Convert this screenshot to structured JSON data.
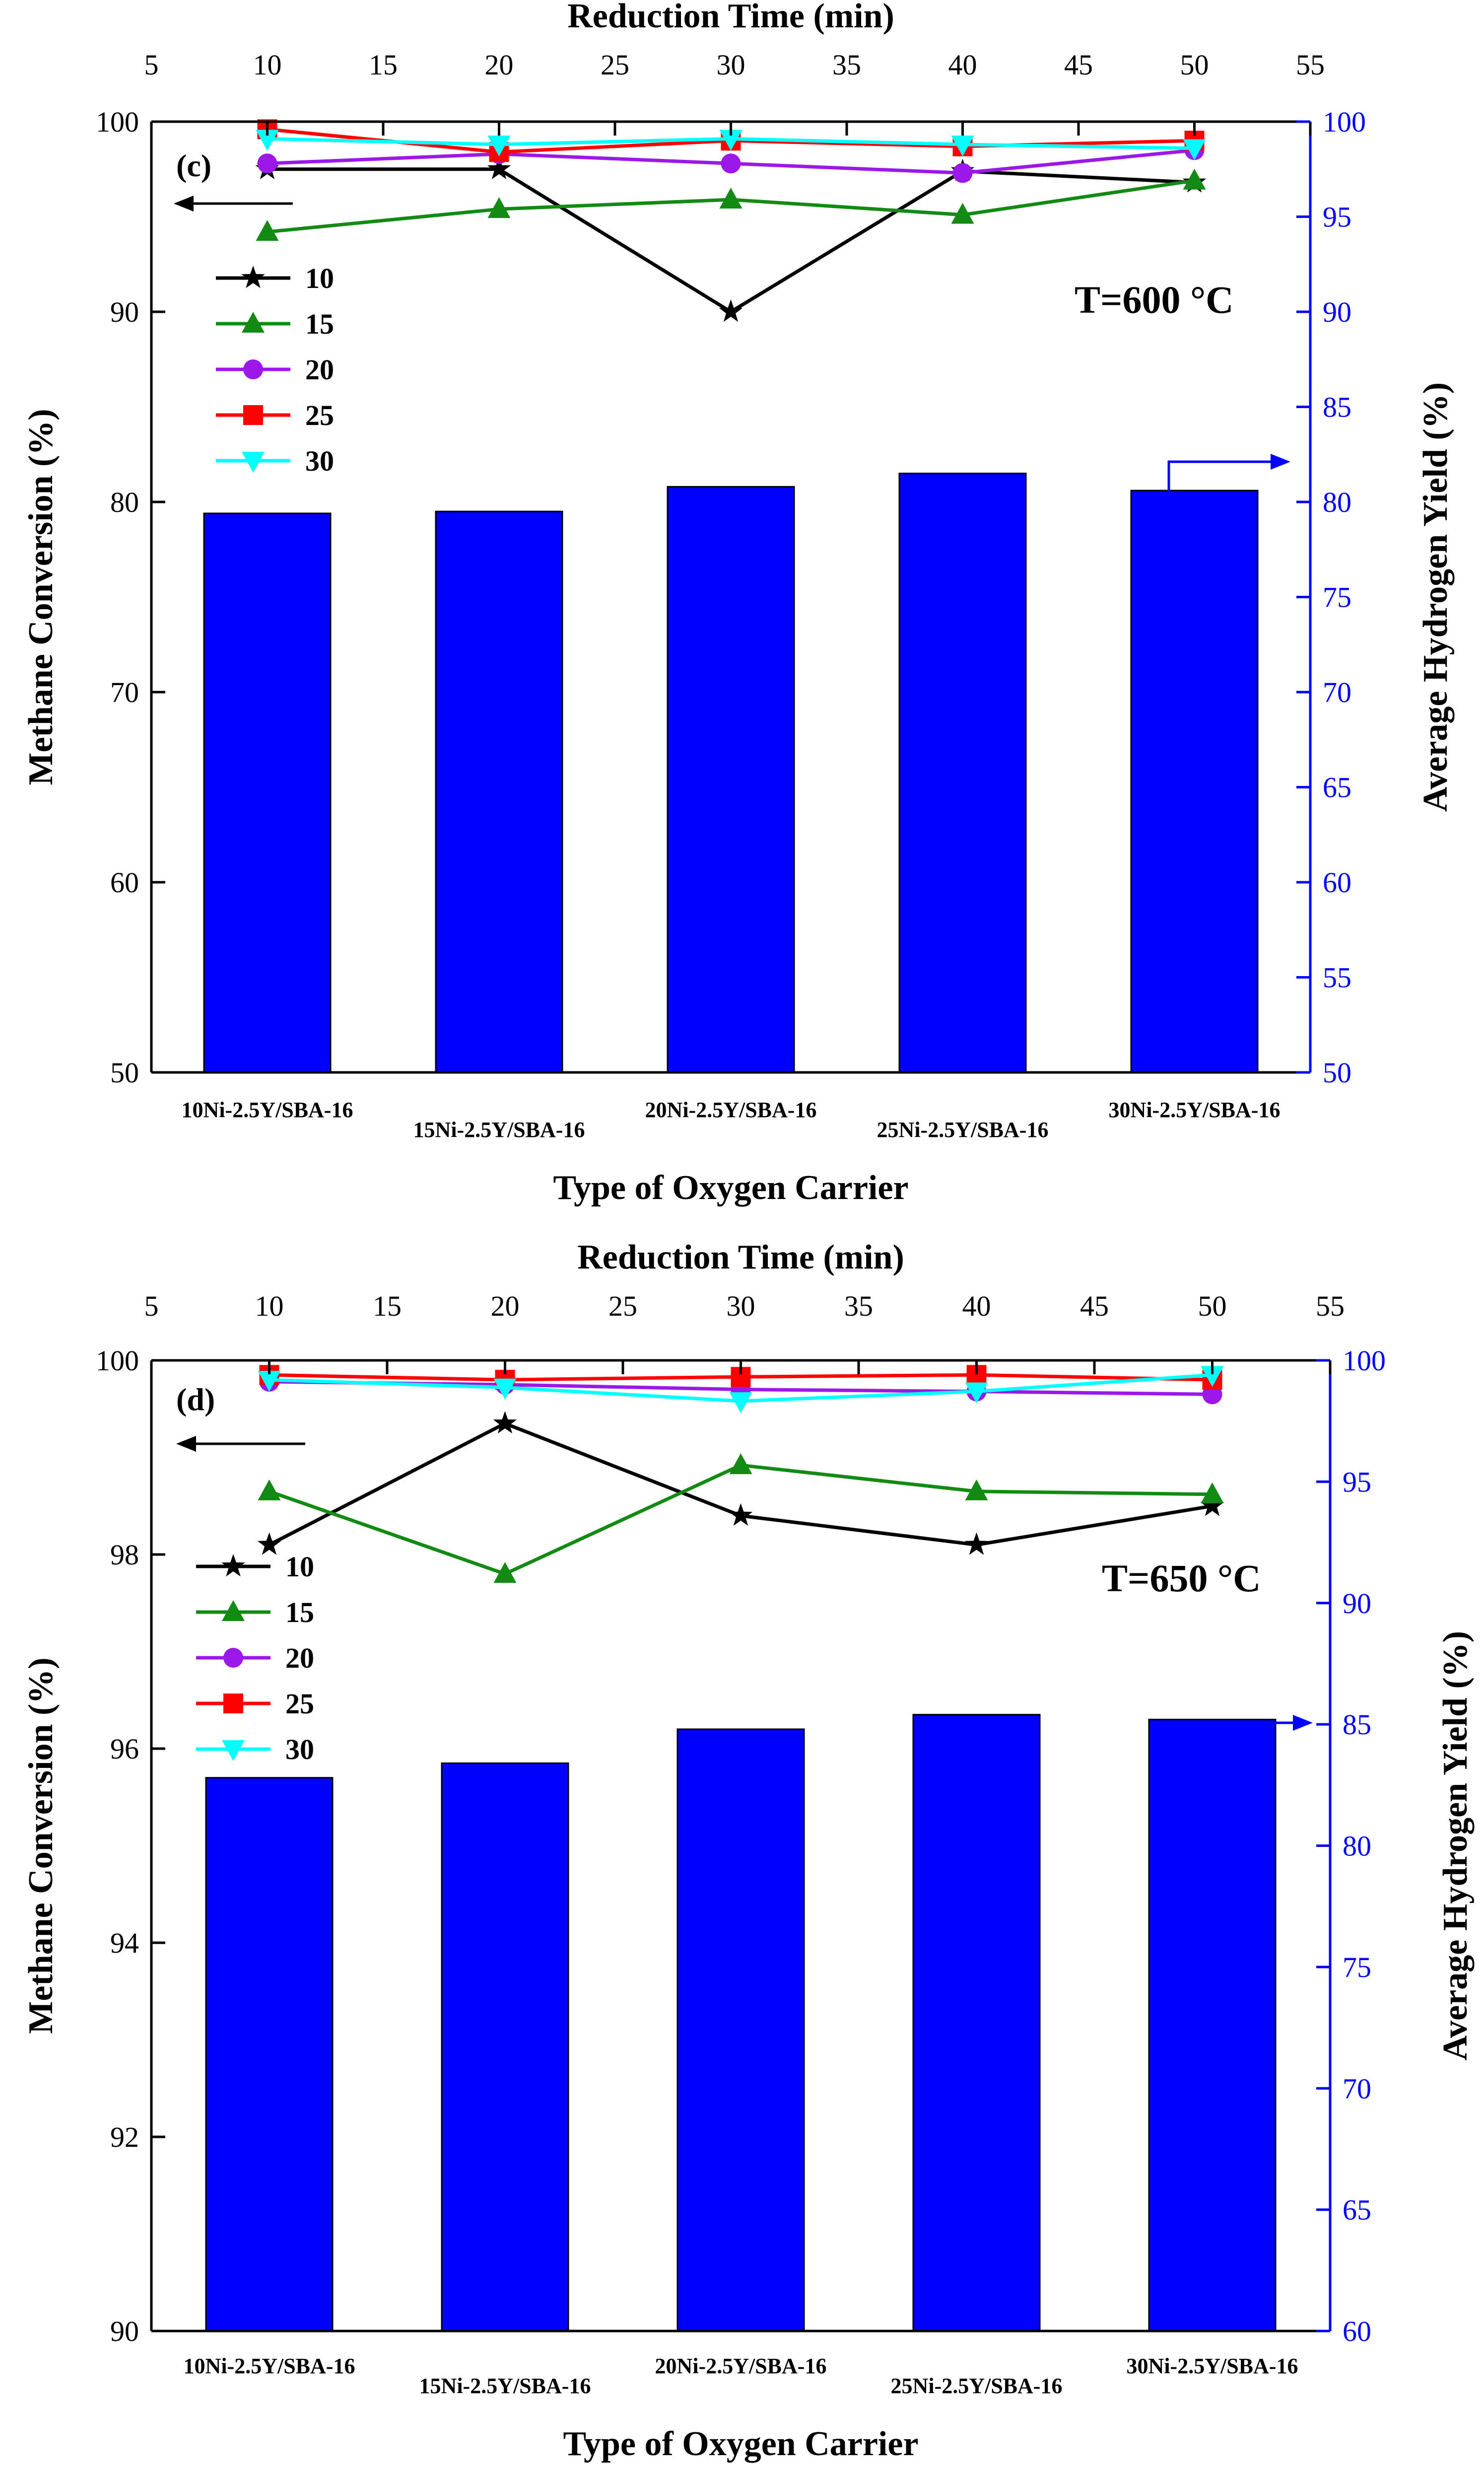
{
  "chart_data": [
    {
      "type": "bar+line",
      "panel_label": "(c)",
      "temperature_label": "T=600 °C",
      "top_xlabel": "Reduction Time (min)",
      "bottom_xlabel": "Type of Oxygen Carrier",
      "left_ylabel": "Methane Conversion (%)",
      "right_ylabel": "Average Hydrogen Yield (%)",
      "top_xlim": [
        5,
        55
      ],
      "top_xticks": [
        5,
        10,
        15,
        20,
        25,
        30,
        35,
        40,
        45,
        50,
        55
      ],
      "left_ylim": [
        50,
        100
      ],
      "left_yticks": [
        50,
        60,
        70,
        80,
        90,
        100
      ],
      "right_ylim": [
        50,
        100
      ],
      "right_yticks": [
        50,
        55,
        60,
        65,
        70,
        75,
        80,
        85,
        90,
        95,
        100
      ],
      "categories": [
        "10Ni-2.5Y/SBA-16",
        "15Ni-2.5Y/SBA-16",
        "20Ni-2.5Y/SBA-16",
        "25Ni-2.5Y/SBA-16",
        "30Ni-2.5Y/SBA-16"
      ],
      "bar_values": [
        79.4,
        79.5,
        80.8,
        81.5,
        80.6
      ],
      "line_x": [
        10,
        20,
        30,
        40,
        50
      ],
      "series": [
        {
          "name": "10",
          "color": "#000000",
          "marker": "star",
          "values": [
            97.5,
            97.5,
            90.0,
            97.4,
            96.8
          ]
        },
        {
          "name": "15",
          "color": "#138a13",
          "marker": "triangle-up",
          "values": [
            94.2,
            95.4,
            95.9,
            95.1,
            96.9
          ]
        },
        {
          "name": "20",
          "color": "#9b18e8",
          "marker": "circle",
          "values": [
            97.8,
            98.3,
            97.8,
            97.3,
            98.5
          ]
        },
        {
          "name": "25",
          "color": "#ff0000",
          "marker": "square",
          "values": [
            99.6,
            98.4,
            99.0,
            98.7,
            99.0
          ]
        },
        {
          "name": "30",
          "color": "#00ffff",
          "marker": "triangle-down",
          "values": [
            99.1,
            98.8,
            99.1,
            98.8,
            98.6
          ]
        }
      ]
    },
    {
      "type": "bar+line",
      "panel_label": "(d)",
      "temperature_label": "T=650 °C",
      "top_xlabel": "Reduction Time (min)",
      "bottom_xlabel": "Type of Oxygen Carrier",
      "left_ylabel": "Methane Conversion (%)",
      "right_ylabel": "Average Hydrogen Yield (%)",
      "top_xlim": [
        5,
        55
      ],
      "top_xticks": [
        5,
        10,
        15,
        20,
        25,
        30,
        35,
        40,
        45,
        50,
        55
      ],
      "left_ylim": [
        90,
        100
      ],
      "left_yticks": [
        90,
        92,
        94,
        96,
        98,
        100
      ],
      "right_ylim": [
        60,
        100
      ],
      "right_yticks": [
        60,
        65,
        70,
        75,
        80,
        85,
        90,
        95,
        100
      ],
      "categories": [
        "10Ni-2.5Y/SBA-16",
        "15Ni-2.5Y/SBA-16",
        "20Ni-2.5Y/SBA-16",
        "25Ni-2.5Y/SBA-16",
        "30Ni-2.5Y/SBA-16"
      ],
      "bar_values": [
        82.8,
        83.4,
        84.8,
        85.4,
        85.2
      ],
      "line_x": [
        10,
        20,
        30,
        40,
        50
      ],
      "series": [
        {
          "name": "10",
          "color": "#000000",
          "marker": "star",
          "values": [
            98.1,
            99.35,
            98.4,
            98.1,
            98.5
          ]
        },
        {
          "name": "15",
          "color": "#138a13",
          "marker": "triangle-up",
          "values": [
            98.65,
            97.8,
            98.92,
            98.65,
            98.62
          ]
        },
        {
          "name": "20",
          "color": "#9b18e8",
          "marker": "circle",
          "values": [
            99.78,
            99.75,
            99.7,
            99.68,
            99.65
          ]
        },
        {
          "name": "25",
          "color": "#ff0000",
          "marker": "square",
          "values": [
            99.85,
            99.8,
            99.83,
            99.85,
            99.8
          ]
        },
        {
          "name": "30",
          "color": "#00ffff",
          "marker": "triangle-down",
          "values": [
            99.8,
            99.72,
            99.58,
            99.68,
            99.85
          ]
        }
      ]
    }
  ],
  "colors": {
    "bar": "#0000ff",
    "right_axis": "#0000ff",
    "axis": "#000000"
  }
}
